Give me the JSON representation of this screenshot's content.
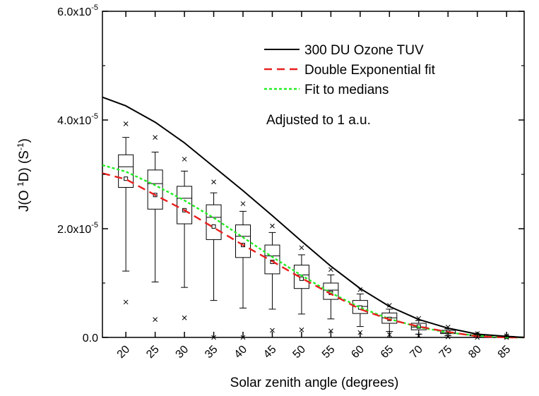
{
  "chart_data": {
    "type": "box",
    "xlabel": "Solar zenith angle (degrees)",
    "ylabel_parts": {
      "a": "J(O ",
      "b": "1",
      "c": "D) (S",
      "d": "-1",
      "e": ")"
    },
    "xlim": [
      16,
      88
    ],
    "ylim": [
      0,
      6e-05
    ],
    "y_ticks": [
      {
        "value": 0,
        "label": "0.0"
      },
      {
        "value": 2e-05,
        "mant": "2.0x10",
        "exp": "-5"
      },
      {
        "value": 4e-05,
        "mant": "4.0x10",
        "exp": "-5"
      },
      {
        "value": 6e-05,
        "mant": "6.0x10",
        "exp": "-5"
      }
    ],
    "x_ticks": [
      "20",
      "25",
      "30",
      "35",
      "40",
      "45",
      "50",
      "55",
      "60",
      "65",
      "70",
      "75",
      "80",
      "85"
    ],
    "annotation": "Adjusted to 1 a.u.",
    "legend": {
      "position": "top-right",
      "entries": [
        {
          "label": "300 DU Ozone TUV",
          "color": "#000000",
          "dash": "solid"
        },
        {
          "label": "Double Exponential fit",
          "color": "#e8201e",
          "dash": "dashed"
        },
        {
          "label": "Fit to medians",
          "color": "#22ee22",
          "dash": "dotted"
        }
      ]
    },
    "boxes": [
      {
        "x": 20,
        "q1": 2.76e-05,
        "median": 3.14e-05,
        "q3": 3.36e-05,
        "whisker_low": 1.22e-05,
        "whisker_high": 3.68e-05,
        "mean": 2.92e-05,
        "min": 6.5e-06,
        "max": 3.93e-05
      },
      {
        "x": 25,
        "q1": 2.36e-05,
        "median": 2.83e-05,
        "q3": 3.08e-05,
        "whisker_low": 1.02e-05,
        "whisker_high": 3.41e-05,
        "mean": 2.62e-05,
        "min": 3.3e-06,
        "max": 3.68e-05
      },
      {
        "x": 30,
        "q1": 2.09e-05,
        "median": 2.56e-05,
        "q3": 2.78e-05,
        "whisker_low": 9.2e-06,
        "whisker_high": 3.06e-05,
        "mean": 2.34e-05,
        "min": 3.6e-06,
        "max": 3.28e-05
      },
      {
        "x": 35,
        "q1": 1.8e-05,
        "median": 2.21e-05,
        "q3": 2.44e-05,
        "whisker_low": 6.8e-06,
        "whisker_high": 2.66e-05,
        "mean": 2.04e-05,
        "min": 0.0,
        "max": 2.86e-05
      },
      {
        "x": 40,
        "q1": 1.47e-05,
        "median": 1.86e-05,
        "q3": 2.07e-05,
        "whisker_low": 5.4e-06,
        "whisker_high": 2.32e-05,
        "mean": 1.7e-05,
        "min": 0.0,
        "max": 2.46e-05
      },
      {
        "x": 45,
        "q1": 1.17e-05,
        "median": 1.5e-05,
        "q3": 1.7e-05,
        "whisker_low": 5.2e-06,
        "whisker_high": 1.93e-05,
        "mean": 1.39e-05,
        "min": 1.3e-06,
        "max": 2.05e-05
      },
      {
        "x": 50,
        "q1": 9e-06,
        "median": 1.15e-05,
        "q3": 1.33e-05,
        "whisker_low": 4.3e-06,
        "whisker_high": 1.52e-05,
        "mean": 1.08e-05,
        "min": 1.4e-06,
        "max": 1.65e-05
      },
      {
        "x": 55,
        "q1": 7e-06,
        "median": 8.7e-06,
        "q3": 1e-05,
        "whisker_low": 3.4e-06,
        "whisker_high": 1.15e-05,
        "mean": 8.2e-06,
        "min": 1.2e-06,
        "max": 1.25e-05
      },
      {
        "x": 60,
        "q1": 4.4e-06,
        "median": 5.7e-06,
        "q3": 6.8e-06,
        "whisker_low": 2e-06,
        "whisker_high": 8e-06,
        "mean": 5.5e-06,
        "min": 9e-07,
        "max": 8.8e-06
      },
      {
        "x": 65,
        "q1": 2.6e-06,
        "median": 3.6e-06,
        "q3": 4.5e-06,
        "whisker_low": 1.1e-06,
        "whisker_high": 5.2e-06,
        "mean": 3.4e-06,
        "min": 5e-07,
        "max": 5.9e-06
      },
      {
        "x": 70,
        "q1": 1.4e-06,
        "median": 1.9e-06,
        "q3": 2.6e-06,
        "whisker_low": 6e-07,
        "whisker_high": 3.1e-06,
        "mean": 2e-06,
        "min": 3e-07,
        "max": 3.5e-06
      },
      {
        "x": 75,
        "q1": 7e-07,
        "median": 9e-07,
        "q3": 1.3e-06,
        "whisker_low": 3e-07,
        "whisker_high": 1.6e-06,
        "mean": 1e-06,
        "min": 1e-07,
        "max": 1.9e-06
      },
      {
        "x": 80,
        "q1": 3e-07,
        "median": 4e-07,
        "q3": 5e-07,
        "whisker_low": 1e-07,
        "whisker_high": 6e-07,
        "mean": 4e-07,
        "min": 0.0,
        "max": 7e-07
      },
      {
        "x": 85,
        "q1": 1e-07,
        "median": 1e-07,
        "q3": 2e-07,
        "whisker_low": 0.0,
        "whisker_high": 2e-07,
        "mean": 1e-07,
        "min": 0.0,
        "max": 3e-07
      }
    ],
    "series": [
      {
        "name": "300 DU Ozone TUV",
        "x": [
          15,
          20,
          25,
          30,
          35,
          40,
          45,
          50,
          55,
          60,
          65,
          70,
          75,
          80,
          85,
          88
        ],
        "y": [
          4.42e-05,
          4.26e-05,
          3.96e-05,
          3.58e-05,
          3.14e-05,
          2.7e-05,
          2.24e-05,
          1.77e-05,
          1.31e-05,
          9e-06,
          5.7e-06,
          3.3e-06,
          1.7e-06,
          6e-07,
          2e-07,
          0.0
        ]
      },
      {
        "name": "Double Exponential fit",
        "x": [
          15,
          20,
          25,
          30,
          35,
          40,
          45,
          50,
          55,
          60,
          65,
          70,
          75,
          80,
          85,
          88
        ],
        "y": [
          3.02e-05,
          2.91e-05,
          2.62e-05,
          2.34e-05,
          2.02e-05,
          1.7e-05,
          1.4e-05,
          1.09e-05,
          8e-06,
          5.2e-06,
          3.3e-06,
          2e-06,
          1e-06,
          2e-07,
          0.0,
          0.0
        ]
      },
      {
        "name": "Fit to medians",
        "x": [
          15,
          20,
          25,
          30,
          35,
          40,
          45,
          50,
          55,
          60,
          65,
          70,
          75,
          80,
          85,
          88
        ],
        "y": [
          3.17e-05,
          3.05e-05,
          2.8e-05,
          2.52e-05,
          2.2e-05,
          1.84e-05,
          1.48e-05,
          1.14e-05,
          8.2e-06,
          5.5e-06,
          3.4e-06,
          1.9e-06,
          9e-07,
          3e-07,
          0.0,
          0.0
        ]
      }
    ]
  }
}
